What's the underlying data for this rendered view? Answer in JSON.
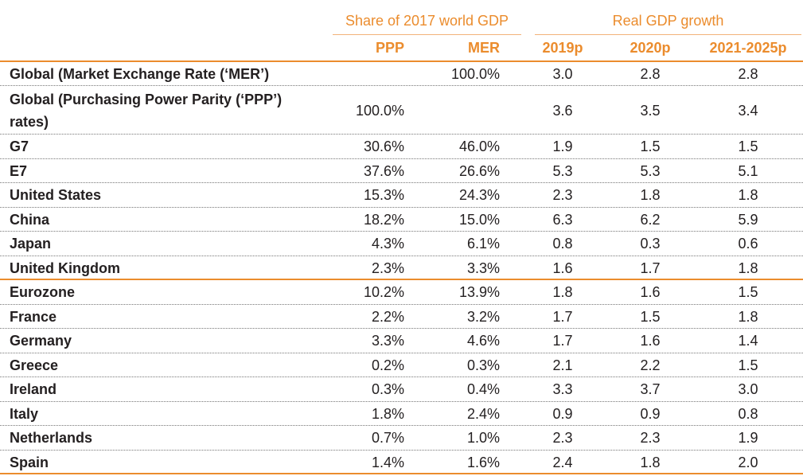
{
  "table": {
    "column_groups": [
      "Share of 2017 world GDP",
      "Real GDP growth"
    ],
    "columns": [
      "PPP",
      "MER",
      "2019p",
      "2020p",
      "2021-2025p"
    ],
    "rows": [
      {
        "label": "Global (Market Exchange Rate (‘MER’)",
        "cells": [
          null,
          "100.0%",
          "3.0",
          "2.8",
          "2.8"
        ]
      },
      {
        "label": "Global (Purchasing Power Parity (‘PPP’) rates)",
        "cells": [
          "100.0%",
          null,
          "3.6",
          "3.5",
          "3.4"
        ]
      },
      {
        "label": "G7",
        "cells": [
          "30.6%",
          "46.0%",
          "1.9",
          "1.5",
          "1.5"
        ]
      },
      {
        "label": "E7",
        "cells": [
          "37.6%",
          "26.6%",
          "5.3",
          "5.3",
          "5.1"
        ]
      },
      {
        "label": "United States",
        "cells": [
          "15.3%",
          "24.3%",
          "2.3",
          "1.8",
          "1.8"
        ]
      },
      {
        "label": "China",
        "cells": [
          "18.2%",
          "15.0%",
          "6.3",
          "6.2",
          "5.9"
        ]
      },
      {
        "label": "Japan",
        "cells": [
          "4.3%",
          "6.1%",
          "0.8",
          "0.3",
          "0.6"
        ]
      },
      {
        "label": "United Kingdom",
        "cells": [
          "2.3%",
          "3.3%",
          "1.6",
          "1.7",
          "1.8"
        ]
      },
      {
        "label": "Eurozone",
        "cells": [
          "10.2%",
          "13.9%",
          "1.8",
          "1.6",
          "1.5"
        ]
      },
      {
        "label": "France",
        "cells": [
          "2.2%",
          "3.2%",
          "1.7",
          "1.5",
          "1.8"
        ]
      },
      {
        "label": "Germany",
        "cells": [
          "3.3%",
          "4.6%",
          "1.7",
          "1.6",
          "1.4"
        ]
      },
      {
        "label": "Greece",
        "cells": [
          "0.2%",
          "0.3%",
          "2.1",
          "2.2",
          "1.5"
        ]
      },
      {
        "label": "Ireland",
        "cells": [
          "0.3%",
          "0.4%",
          "3.3",
          "3.7",
          "3.0"
        ]
      },
      {
        "label": "Italy",
        "cells": [
          "1.8%",
          "2.4%",
          "0.9",
          "0.9",
          "0.8"
        ]
      },
      {
        "label": "Netherlands",
        "cells": [
          "0.7%",
          "1.0%",
          "2.3",
          "2.3",
          "1.9"
        ]
      },
      {
        "label": "Spain",
        "cells": [
          "1.4%",
          "1.6%",
          "2.4",
          "1.8",
          "2.0"
        ]
      }
    ]
  }
}
